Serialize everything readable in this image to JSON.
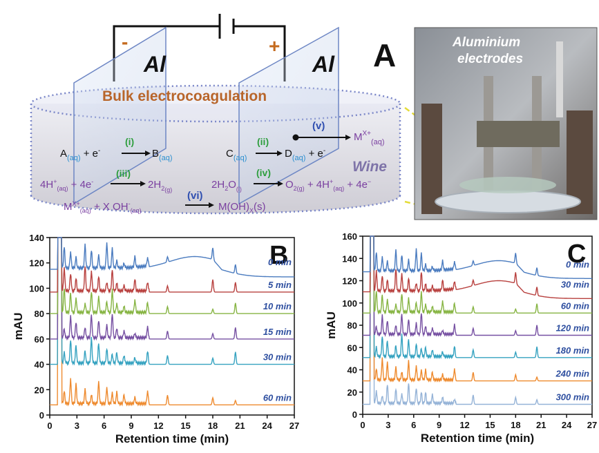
{
  "schematic": {
    "panel_letter": "A",
    "minus_sign": "-",
    "plus_sign": "+",
    "electrode_left": "Al",
    "electrode_right": "Al",
    "bulk_label": "Bulk electrocoagulation",
    "wine_label": "Wine",
    "photo_label_line1": "Aluminium",
    "photo_label_line2": "electrodes",
    "step_i": "(i)",
    "step_ii": "(ii)",
    "step_iii": "(iii)",
    "step_iv": "(iv)",
    "step_v": "(v)",
    "step_vi": "(vi)",
    "colors": {
      "green": "#2e9e3e",
      "blue": "#2f4fb0",
      "purple": "#7a3fa0",
      "orange": "#b5651d",
      "cyan": "#2a8fd0"
    }
  },
  "panel_b": {
    "letter": "B",
    "ylabel": "mAU",
    "xlabel": "Retention time (min)",
    "yticks": [
      "0",
      "20",
      "40",
      "60",
      "80",
      "100",
      "120",
      "140"
    ],
    "xticks": [
      "0",
      "3",
      "6",
      "9",
      "12",
      "15",
      "18",
      "21",
      "24",
      "27"
    ],
    "traces": [
      {
        "label": "0 min",
        "offset": 115,
        "color": "#4a7bbf",
        "hump": true
      },
      {
        "label": "5 min",
        "offset": 97,
        "color": "#b8403e",
        "hump": false
      },
      {
        "label": "10 min",
        "offset": 80,
        "color": "#86b442",
        "hump": false
      },
      {
        "label": "15 min",
        "offset": 60,
        "color": "#7650a2",
        "hump": false
      },
      {
        "label": "30 min",
        "offset": 40,
        "color": "#35a2c0",
        "hump": false
      },
      {
        "label": "60 min",
        "offset": 8,
        "color": "#ee8a2e",
        "hump": false
      }
    ]
  },
  "panel_c": {
    "letter": "C",
    "ylabel": "mAU",
    "xlabel": "Retention time (min)",
    "yticks": [
      "0",
      "20",
      "40",
      "60",
      "80",
      "100",
      "120",
      "140",
      "160"
    ],
    "xticks": [
      "0",
      "3",
      "6",
      "9",
      "12",
      "15",
      "18",
      "21",
      "24",
      "27"
    ],
    "traces": [
      {
        "label": "0 min",
        "offset": 128,
        "color": "#4a7bbf",
        "hump": true
      },
      {
        "label": "30 min",
        "offset": 110,
        "color": "#b8403e",
        "hump": true
      },
      {
        "label": "60 min",
        "offset": 91,
        "color": "#86b442",
        "hump": false
      },
      {
        "label": "120 min",
        "offset": 71,
        "color": "#7650a2",
        "hump": false
      },
      {
        "label": "180 min",
        "offset": 51,
        "color": "#35a2c0",
        "hump": false
      },
      {
        "label": "240 min",
        "offset": 30,
        "color": "#ee8a2e",
        "hump": false
      },
      {
        "label": "300 min",
        "offset": 9,
        "color": "#95b3d7",
        "hump": false
      }
    ]
  }
}
